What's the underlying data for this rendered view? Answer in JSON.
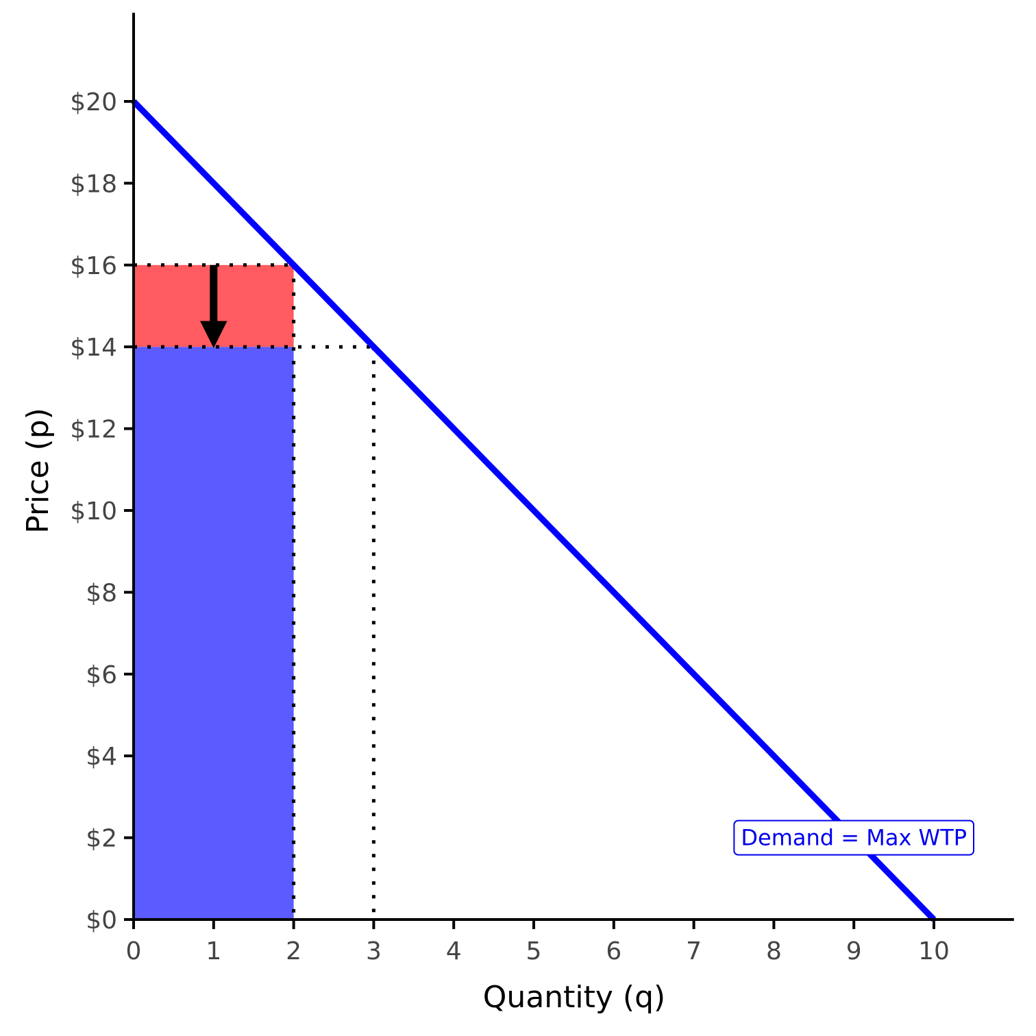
{
  "chart_data": {
    "type": "line",
    "title": "",
    "xlabel": "Quantity (q)",
    "ylabel": "Price (p)",
    "xlim": [
      0,
      11
    ],
    "ylim": [
      0,
      22
    ],
    "x_ticks": [
      0,
      1,
      2,
      3,
      4,
      5,
      6,
      7,
      8,
      9,
      10
    ],
    "x_tick_labels": [
      "0",
      "1",
      "2",
      "3",
      "4",
      "5",
      "6",
      "7",
      "8",
      "9",
      "10"
    ],
    "y_ticks": [
      0,
      2,
      4,
      6,
      8,
      10,
      12,
      14,
      16,
      18,
      20
    ],
    "y_tick_labels": [
      "$0",
      "$2",
      "$4",
      "$6",
      "$8",
      "$10",
      "$12",
      "$14",
      "$16",
      "$18",
      "$20"
    ],
    "grid": false,
    "series": [
      {
        "x": [
          0,
          10
        ],
        "y": [
          20,
          0
        ],
        "color": "#0000ff"
      }
    ],
    "regions": [
      {
        "x": [
          0,
          2
        ],
        "y": [
          0,
          14
        ],
        "color": "#5b5bff"
      },
      {
        "x": [
          0,
          2
        ],
        "y": [
          14,
          16
        ],
        "color": "#ff5b60"
      }
    ],
    "reference_lines": [
      {
        "from": [
          0,
          16
        ],
        "to": [
          2,
          16
        ]
      },
      {
        "from": [
          2,
          16
        ],
        "to": [
          2,
          0
        ]
      },
      {
        "from": [
          0,
          14
        ],
        "to": [
          3,
          14
        ]
      },
      {
        "from": [
          3,
          14
        ],
        "to": [
          3,
          0
        ]
      }
    ],
    "arrow": {
      "from": [
        1,
        16
      ],
      "to": [
        1,
        14
      ],
      "color": "#000000"
    },
    "annotations": [
      {
        "text": "Demand = Max WTP",
        "x": 9,
        "y": 2,
        "color": "#0000ee"
      }
    ]
  }
}
